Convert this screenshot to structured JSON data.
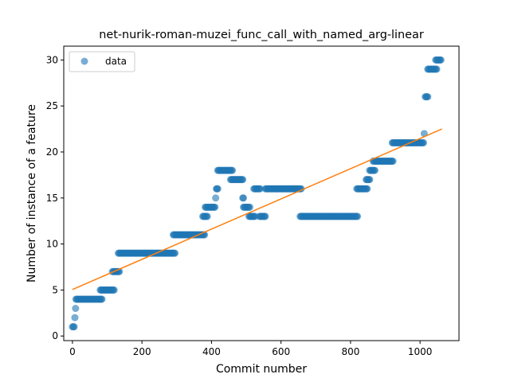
{
  "chart_data": {
    "type": "scatter",
    "title": "net-nurik-roman-muzei_func_call_with_named_arg-linear",
    "xlabel": "Commit number",
    "ylabel": "Number of instance of a feature",
    "xlim": [
      -25,
      1112
    ],
    "ylim": [
      -0.5,
      31.5
    ],
    "xticks": [
      0,
      200,
      400,
      600,
      800,
      1000
    ],
    "yticks": [
      0,
      5,
      10,
      15,
      20,
      25,
      30
    ],
    "grid": false,
    "legend": {
      "position": "top-left",
      "entries": [
        "data"
      ]
    },
    "colors": {
      "points": "#1f77b4",
      "fit": "#ff7f0e"
    },
    "series": [
      {
        "name": "data",
        "kind": "points",
        "segments": [
          {
            "x_start": 0,
            "x_end": 5,
            "y": 1
          },
          {
            "x_start": 7,
            "x_end": 7,
            "y": 2
          },
          {
            "x_start": 9,
            "x_end": 9,
            "y": 3
          },
          {
            "x_start": 10,
            "x_end": 85,
            "y": 4
          },
          {
            "x_start": 80,
            "x_end": 120,
            "y": 5
          },
          {
            "x_start": 115,
            "x_end": 135,
            "y": 7
          },
          {
            "x_start": 132,
            "x_end": 295,
            "y": 9
          },
          {
            "x_start": 290,
            "x_end": 380,
            "y": 11
          },
          {
            "x_start": 375,
            "x_end": 388,
            "y": 13
          },
          {
            "x_start": 382,
            "x_end": 410,
            "y": 14
          },
          {
            "x_start": 412,
            "x_end": 412,
            "y": 15
          },
          {
            "x_start": 414,
            "x_end": 418,
            "y": 16
          },
          {
            "x_start": 418,
            "x_end": 460,
            "y": 18
          },
          {
            "x_start": 455,
            "x_end": 490,
            "y": 17
          },
          {
            "x_start": 490,
            "x_end": 492,
            "y": 15
          },
          {
            "x_start": 492,
            "x_end": 510,
            "y": 14
          },
          {
            "x_start": 508,
            "x_end": 525,
            "y": 13
          },
          {
            "x_start": 522,
            "x_end": 540,
            "y": 16
          },
          {
            "x_start": 538,
            "x_end": 555,
            "y": 13
          },
          {
            "x_start": 555,
            "x_end": 658,
            "y": 16
          },
          {
            "x_start": 655,
            "x_end": 820,
            "y": 13
          },
          {
            "x_start": 818,
            "x_end": 848,
            "y": 16
          },
          {
            "x_start": 845,
            "x_end": 855,
            "y": 17
          },
          {
            "x_start": 855,
            "x_end": 870,
            "y": 18
          },
          {
            "x_start": 865,
            "x_end": 922,
            "y": 19
          },
          {
            "x_start": 920,
            "x_end": 1010,
            "y": 21
          },
          {
            "x_start": 1012,
            "x_end": 1012,
            "y": 22
          },
          {
            "x_start": 1015,
            "x_end": 1022,
            "y": 26
          },
          {
            "x_start": 1022,
            "x_end": 1048,
            "y": 29
          },
          {
            "x_start": 1045,
            "x_end": 1060,
            "y": 30
          }
        ]
      },
      {
        "kind": "line",
        "x": [
          0,
          1063
        ],
        "y": [
          5.05,
          22.5
        ]
      }
    ]
  }
}
